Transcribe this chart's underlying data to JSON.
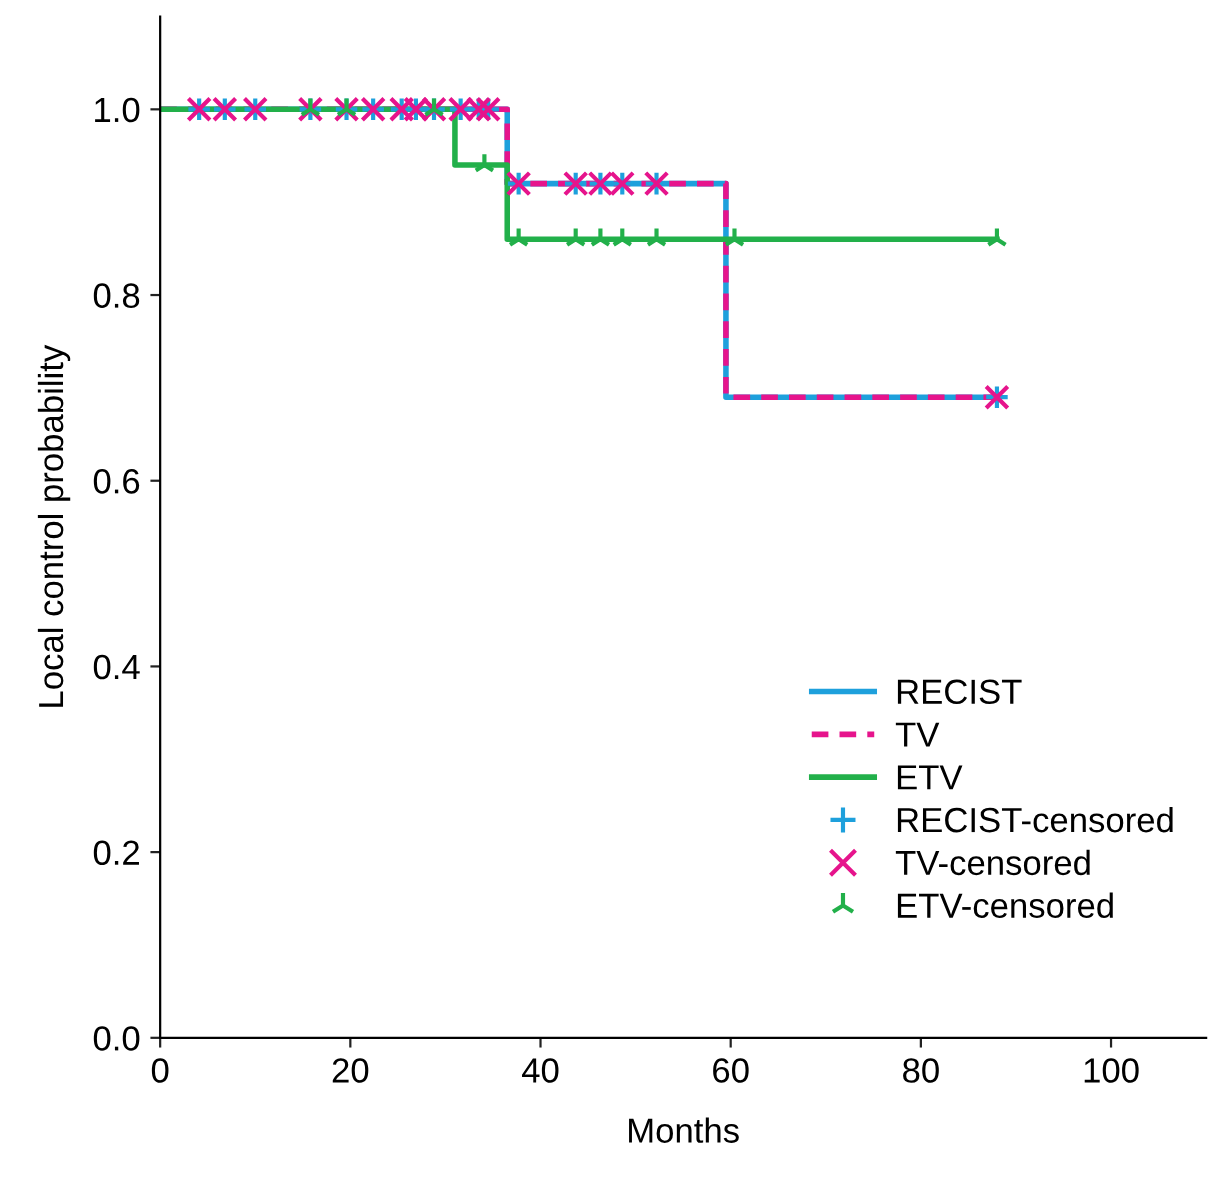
{
  "chart_data": {
    "type": "step",
    "xlabel": "Months",
    "ylabel": "Local control probability",
    "xlim": [
      0,
      110
    ],
    "xticks": [
      0,
      20,
      40,
      60,
      80,
      100
    ],
    "ylim": [
      0,
      1.1
    ],
    "yticks": [
      {
        "value": 0,
        "label": "0.0"
      },
      {
        "value": 0.2,
        "label": "0.2"
      },
      {
        "value": 0.4,
        "label": "0.4"
      },
      {
        "value": 0.6,
        "label": "0.6"
      },
      {
        "value": 0.8,
        "label": "0.8"
      },
      {
        "value": 1,
        "label": "1.0"
      }
    ],
    "grid": false,
    "legend": "lower right",
    "series": [
      {
        "name": "RECIST",
        "color": "#1ea0dc",
        "line_style": "solid",
        "x": [
          0,
          36.5,
          59.5,
          88
        ],
        "values": [
          1.0,
          0.92,
          0.69,
          0.69
        ]
      },
      {
        "name": "TV",
        "color": "#e6148c",
        "line_style": "dashed",
        "x": [
          0,
          36.5,
          59.5,
          88
        ],
        "values": [
          1.0,
          0.92,
          0.69,
          0.69
        ]
      },
      {
        "name": "ETV",
        "color": "#22b04a",
        "line_style": "solid",
        "x": [
          0,
          31,
          36.5,
          88
        ],
        "values": [
          1.0,
          0.94,
          0.86,
          0.86
        ]
      },
      {
        "name": "RECIST-censored",
        "type": "scatter",
        "marker": "cross",
        "color": "#1ea0dc",
        "x": [
          4.1,
          6.8,
          10.0,
          15.8,
          19.6,
          22.4,
          25.4,
          26.9,
          28.8,
          31.6,
          33.5,
          34.5,
          37.7,
          43.7,
          46.3,
          48.6,
          52.2,
          88
        ],
        "values": [
          1,
          1,
          1,
          1,
          1,
          1,
          1,
          1,
          1,
          1,
          1,
          1,
          0.92,
          0.92,
          0.92,
          0.92,
          0.92,
          0.69
        ]
      },
      {
        "name": "TV-censored",
        "type": "scatter",
        "marker": "x",
        "color": "#e6148c",
        "x": [
          4.1,
          6.8,
          10.0,
          15.8,
          19.6,
          22.4,
          25.4,
          26.9,
          28.8,
          31.6,
          33.5,
          34.5,
          37.7,
          43.7,
          46.3,
          48.6,
          52.2,
          88
        ],
        "values": [
          1,
          1,
          1,
          1,
          1,
          1,
          1,
          1,
          1,
          1,
          1,
          1,
          0.92,
          0.92,
          0.92,
          0.92,
          0.92,
          0.69
        ]
      },
      {
        "name": "ETV-censored",
        "type": "scatter",
        "color": "#22b04a",
        "x": [
          15.8,
          19.6,
          28.8,
          34.1,
          37.7,
          43.7,
          46.3,
          48.6,
          52.2,
          60.4,
          88
        ],
        "values": [
          1,
          1,
          1,
          0.94,
          0.86,
          0.86,
          0.86,
          0.86,
          0.86,
          0.86,
          0.86
        ]
      }
    ]
  }
}
